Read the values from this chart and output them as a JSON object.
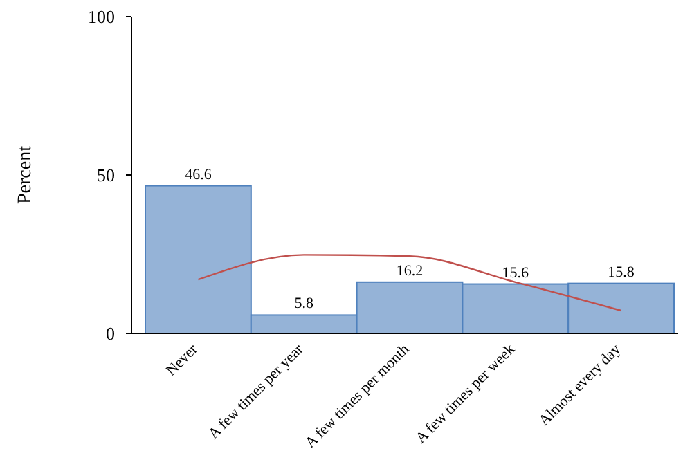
{
  "chart_data": {
    "type": "bar",
    "ylabel": "Percent",
    "categories": [
      "Never",
      "A few times per year",
      "A few times per month",
      "A few times per week",
      "Almost every day"
    ],
    "series": [
      {
        "color": "#95b3d7",
        "values": [
          46.6,
          5.8,
          16.2,
          15.6,
          15.8
        ],
        "value_labels": [
          "46.6",
          "5.8",
          "16.2",
          "15.6",
          "15.8"
        ]
      },
      {
        "type": "line",
        "color": "#c0504d",
        "values": [
          17.0,
          24.8,
          24.4,
          16.2,
          7.2
        ]
      }
    ],
    "ylim": [
      0,
      100
    ],
    "yticks": [
      0,
      50,
      100
    ],
    "marker": "none",
    "line_style": "solid"
  }
}
